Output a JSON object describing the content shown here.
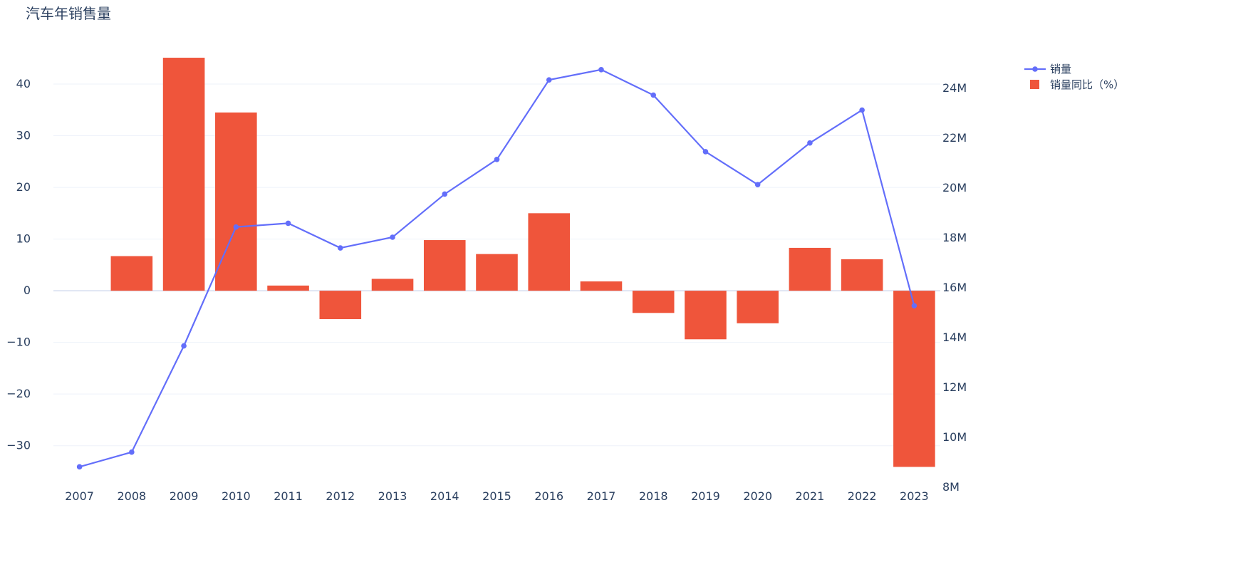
{
  "chart_data": {
    "type": "bar+line",
    "title": "汽车年销售量",
    "categories": [
      "2007",
      "2008",
      "2009",
      "2010",
      "2011",
      "2012",
      "2013",
      "2014",
      "2015",
      "2016",
      "2017",
      "2018",
      "2019",
      "2020",
      "2021",
      "2022",
      "2023"
    ],
    "series": [
      {
        "name": "销量",
        "type": "line",
        "axis": "y2",
        "color": "#636efa",
        "values": [
          8790000,
          9380000,
          13640000,
          18410000,
          18560000,
          17570000,
          18000000,
          19730000,
          21120000,
          24310000,
          24720000,
          23700000,
          21430000,
          20110000,
          21780000,
          23100000,
          15250000
        ]
      },
      {
        "name": "销量同比（%）",
        "type": "bar",
        "axis": "y",
        "color": "#ef553b",
        "values": [
          null,
          6.7,
          45.1,
          34.5,
          1.0,
          -5.5,
          2.3,
          9.8,
          7.1,
          15.0,
          1.8,
          -4.3,
          -9.4,
          -6.3,
          8.3,
          6.1,
          -34.1
        ]
      }
    ],
    "y_ticks": [
      "−30",
      "−20",
      "−10",
      "0",
      "10",
      "20",
      "30",
      "40"
    ],
    "y_tick_values": [
      -30,
      -20,
      -10,
      0,
      10,
      20,
      30,
      40
    ],
    "y2_ticks": [
      "8M",
      "10M",
      "12M",
      "14M",
      "16M",
      "18M",
      "20M",
      "22M",
      "24M"
    ],
    "y2_tick_values": [
      8000000,
      10000000,
      12000000,
      14000000,
      16000000,
      18000000,
      20000000,
      22000000,
      24000000
    ],
    "ylim": [
      -37.9,
      48.0
    ],
    "y2lim": [
      8000000,
      25800000
    ],
    "grid": true,
    "legend_position": "top-right"
  }
}
